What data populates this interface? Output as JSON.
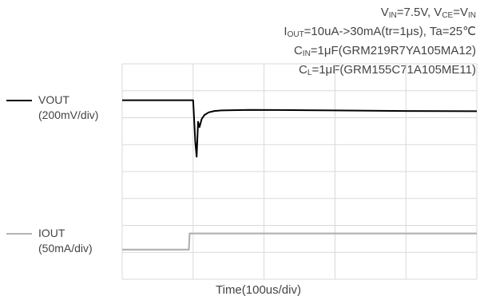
{
  "conditions": {
    "line1": {
      "vin": "V",
      "vin_sub": "IN",
      "vin_val": "=7.5V, V",
      "vce_sub": "CE",
      "vce_val": "=V",
      "vin2_sub": "IN"
    },
    "line2": {
      "iout": "I",
      "iout_sub": "OUT",
      "rest": "=10uA->30mA(tr=1μs),  Ta=25℃"
    },
    "line3": {
      "cin": "C",
      "cin_sub": "IN",
      "rest": "=1μF(GRM219R7YA105MA12)"
    },
    "line4": {
      "cl": "C",
      "cl_sub": "L",
      "rest": "=1μF(GRM155C71A105ME11)"
    }
  },
  "legend": {
    "vout": {
      "name": "VOUT",
      "scale": "(200mV/div)",
      "color": "#000000"
    },
    "iout": {
      "name": "IOUT",
      "scale": "(50mA/div)",
      "color": "#b3b3b3"
    }
  },
  "chart_data": {
    "type": "line",
    "title": "",
    "xlabel": "Time(100us/div)",
    "ylabel": "",
    "grid": true,
    "x_divisions": 5,
    "y_divisions": 8,
    "xlim": [
      0,
      500
    ],
    "x_unit": "us",
    "series": [
      {
        "name": "VOUT",
        "unit": "mV",
        "volts_per_div": 200,
        "color": "#000000",
        "x": [
          0,
          100,
          101,
          103,
          105,
          107,
          109,
          112,
          116,
          122,
          130,
          140,
          155,
          180,
          220,
          300,
          400,
          500
        ],
        "y": [
          0,
          0,
          -100,
          -310,
          -420,
          -160,
          -200,
          -140,
          -110,
          -90,
          -80,
          -76,
          -74,
          -72,
          -73,
          -76,
          -80,
          -82
        ]
      },
      {
        "name": "IOUT",
        "unit": "mA",
        "volts_per_div": 50,
        "color": "#b3b3b3",
        "x": [
          0,
          94,
          95,
          96,
          500
        ],
        "y": [
          0,
          0,
          30,
          30,
          30
        ]
      }
    ]
  }
}
